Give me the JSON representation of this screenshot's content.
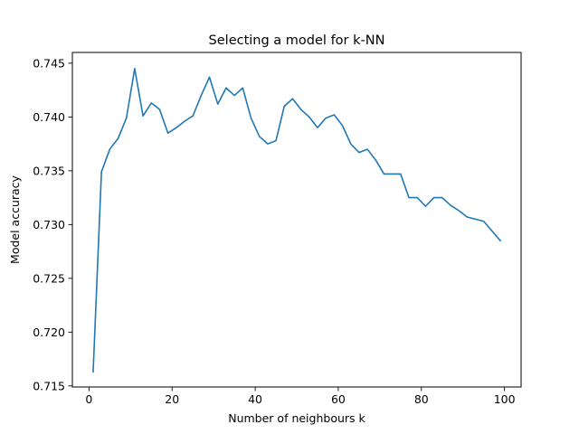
{
  "chart_data": {
    "type": "line",
    "title": "Selecting a model for k-NN",
    "xlabel": "Number of neighbours k",
    "ylabel": "Model accuracy",
    "xlim": [
      -4,
      104
    ],
    "ylim": [
      0.7149,
      0.746
    ],
    "xticks": [
      0,
      20,
      40,
      60,
      80,
      100
    ],
    "xtick_labels": [
      "0",
      "20",
      "40",
      "60",
      "80",
      "100"
    ],
    "yticks": [
      0.715,
      0.72,
      0.725,
      0.73,
      0.735,
      0.74,
      0.745
    ],
    "ytick_labels": [
      "0.715",
      "0.720",
      "0.725",
      "0.730",
      "0.735",
      "0.740",
      "0.745"
    ],
    "grid": false,
    "series": [
      {
        "color": "#1f77b4",
        "x": [
          1,
          3,
          5,
          7,
          9,
          11,
          13,
          15,
          17,
          19,
          21,
          23,
          25,
          27,
          29,
          31,
          33,
          35,
          37,
          39,
          41,
          43,
          45,
          47,
          49,
          51,
          53,
          55,
          57,
          59,
          61,
          63,
          65,
          67,
          69,
          71,
          73,
          75,
          77,
          79,
          81,
          83,
          85,
          87,
          89,
          91,
          93,
          95,
          97,
          99
        ],
        "y": [
          0.7163,
          0.7349,
          0.737,
          0.738,
          0.7399,
          0.7445,
          0.7401,
          0.7413,
          0.7407,
          0.7385,
          0.739,
          0.7396,
          0.7401,
          0.742,
          0.7437,
          0.7412,
          0.7427,
          0.742,
          0.7427,
          0.7399,
          0.7382,
          0.7375,
          0.7378,
          0.741,
          0.7417,
          0.7407,
          0.74,
          0.739,
          0.7399,
          0.7402,
          0.7392,
          0.7375,
          0.7367,
          0.737,
          0.736,
          0.7347,
          0.7347,
          0.7347,
          0.7325,
          0.7325,
          0.7317,
          0.7325,
          0.7325,
          0.7318,
          0.7313,
          0.7307,
          0.7305,
          0.7303,
          0.7294,
          0.7285
        ]
      }
    ]
  }
}
